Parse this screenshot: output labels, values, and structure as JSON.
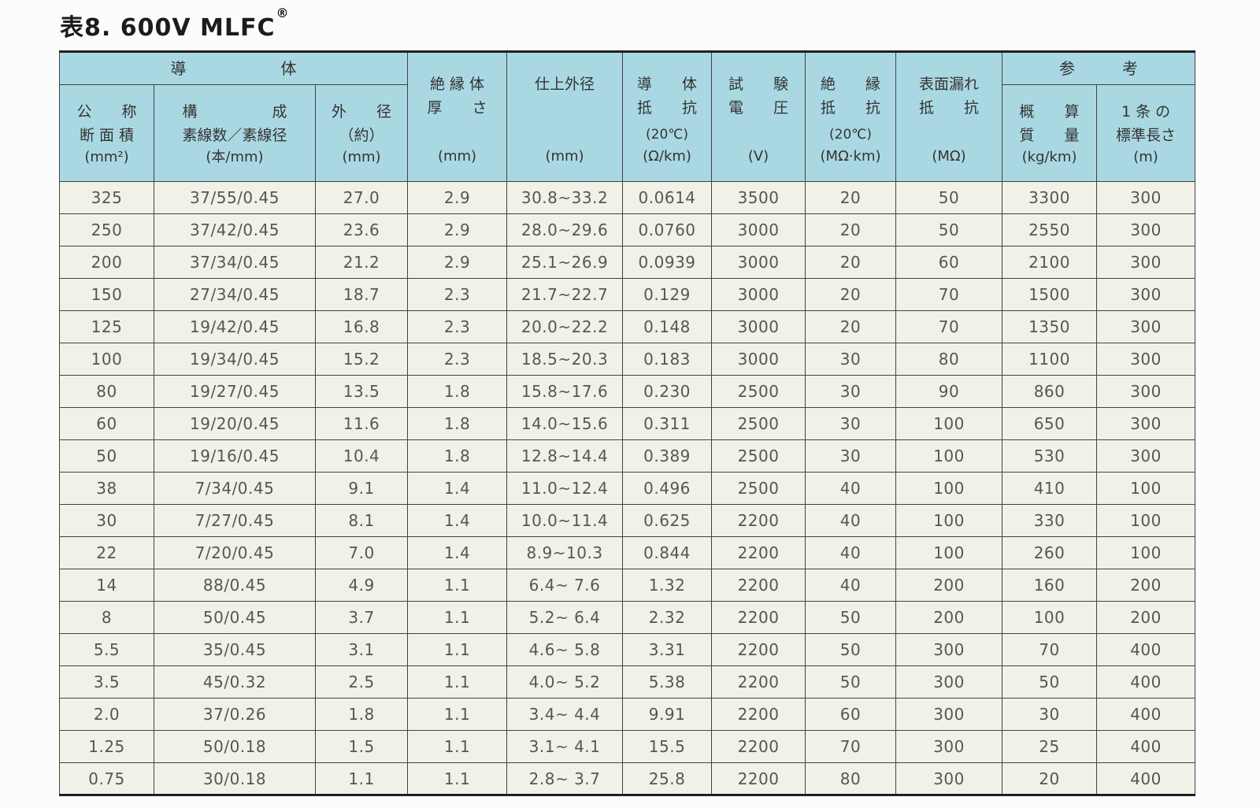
{
  "page": {
    "title": "表8. 600V MLFC",
    "title_sup": "®"
  },
  "colors": {
    "header_bg": "#aad8e2",
    "body_bg": "#f0f2e8",
    "grid_line": "#424242"
  },
  "table": {
    "groups": {
      "conductor": "導　　　　　　体",
      "reference": "参　　　考"
    },
    "columns": [
      {
        "name": "nominal-cross-section",
        "title": "公　　称\n断 面 積",
        "unit": "(mm²)"
      },
      {
        "name": "composition",
        "title": "構　　　　　成\n素線数／素線径",
        "unit": "(本/mm)"
      },
      {
        "name": "conductor-outer-diameter",
        "title": "外　　径\n（約）",
        "unit": "(mm)"
      },
      {
        "name": "insulation-thickness",
        "title": "絶 縁 体\n厚　　さ",
        "unit": "(mm)"
      },
      {
        "name": "finished-outer-diameter",
        "title": "仕上外径",
        "unit": "(mm)"
      },
      {
        "name": "conductor-resistance",
        "title": "導　　体\n抵　　抗",
        "sub": "(20℃)",
        "unit": "(Ω/km)"
      },
      {
        "name": "test-voltage",
        "title": "試　　験\n電　　圧",
        "unit": "(V)"
      },
      {
        "name": "insulation-resistance",
        "title": "絶　　縁\n抵　　抗",
        "sub": "(20℃)",
        "unit": "(MΩ·km)"
      },
      {
        "name": "surface-leakage-resistance",
        "title": "表面漏れ\n抵　　抗",
        "unit": "(MΩ)"
      },
      {
        "name": "approximate-mass",
        "title": "概　　算\n質　　量",
        "unit": "(kg/km)"
      },
      {
        "name": "standard-length-per-piece",
        "title": "1 条 の\n標準長さ",
        "unit": "(m)"
      }
    ],
    "rows": [
      [
        "325",
        "37/55/0.45",
        "27.0",
        "2.9",
        "30.8~33.2",
        "0.0614",
        "3500",
        "20",
        "50",
        "3300",
        "300"
      ],
      [
        "250",
        "37/42/0.45",
        "23.6",
        "2.9",
        "28.0~29.6",
        "0.0760",
        "3000",
        "20",
        "50",
        "2550",
        "300"
      ],
      [
        "200",
        "37/34/0.45",
        "21.2",
        "2.9",
        "25.1~26.9",
        "0.0939",
        "3000",
        "20",
        "60",
        "2100",
        "300"
      ],
      [
        "150",
        "27/34/0.45",
        "18.7",
        "2.3",
        "21.7~22.7",
        "0.129",
        "3000",
        "20",
        "70",
        "1500",
        "300"
      ],
      [
        "125",
        "19/42/0.45",
        "16.8",
        "2.3",
        "20.0~22.2",
        "0.148",
        "3000",
        "20",
        "70",
        "1350",
        "300"
      ],
      [
        "100",
        "19/34/0.45",
        "15.2",
        "2.3",
        "18.5~20.3",
        "0.183",
        "3000",
        "30",
        "80",
        "1100",
        "300"
      ],
      [
        "80",
        "19/27/0.45",
        "13.5",
        "1.8",
        "15.8~17.6",
        "0.230",
        "2500",
        "30",
        "90",
        "860",
        "300"
      ],
      [
        "60",
        "19/20/0.45",
        "11.6",
        "1.8",
        "14.0~15.6",
        "0.311",
        "2500",
        "30",
        "100",
        "650",
        "300"
      ],
      [
        "50",
        "19/16/0.45",
        "10.4",
        "1.8",
        "12.8~14.4",
        "0.389",
        "2500",
        "30",
        "100",
        "530",
        "300"
      ],
      [
        "38",
        "7/34/0.45",
        "9.1",
        "1.4",
        "11.0~12.4",
        "0.496",
        "2500",
        "40",
        "100",
        "410",
        "100"
      ],
      [
        "30",
        "7/27/0.45",
        "8.1",
        "1.4",
        "10.0~11.4",
        "0.625",
        "2200",
        "40",
        "100",
        "330",
        "100"
      ],
      [
        "22",
        "7/20/0.45",
        "7.0",
        "1.4",
        "8.9~10.3",
        "0.844",
        "2200",
        "40",
        "100",
        "260",
        "100"
      ],
      [
        "14",
        "88/0.45",
        "4.9",
        "1.1",
        "6.4~ 7.6",
        "1.32",
        "2200",
        "40",
        "200",
        "160",
        "200"
      ],
      [
        "8",
        "50/0.45",
        "3.7",
        "1.1",
        "5.2~ 6.4",
        "2.32",
        "2200",
        "50",
        "200",
        "100",
        "200"
      ],
      [
        "5.5",
        "35/0.45",
        "3.1",
        "1.1",
        "4.6~ 5.8",
        "3.31",
        "2200",
        "50",
        "300",
        "70",
        "400"
      ],
      [
        "3.5",
        "45/0.32",
        "2.5",
        "1.1",
        "4.0~ 5.2",
        "5.38",
        "2200",
        "50",
        "300",
        "50",
        "400"
      ],
      [
        "2.0",
        "37/0.26",
        "1.8",
        "1.1",
        "3.4~ 4.4",
        "9.91",
        "2200",
        "60",
        "300",
        "30",
        "400"
      ],
      [
        "1.25",
        "50/0.18",
        "1.5",
        "1.1",
        "3.1~ 4.1",
        "15.5",
        "2200",
        "70",
        "300",
        "25",
        "400"
      ],
      [
        "0.75",
        "30/0.18",
        "1.1",
        "1.1",
        "2.8~ 3.7",
        "25.8",
        "2200",
        "80",
        "300",
        "20",
        "400"
      ]
    ]
  }
}
